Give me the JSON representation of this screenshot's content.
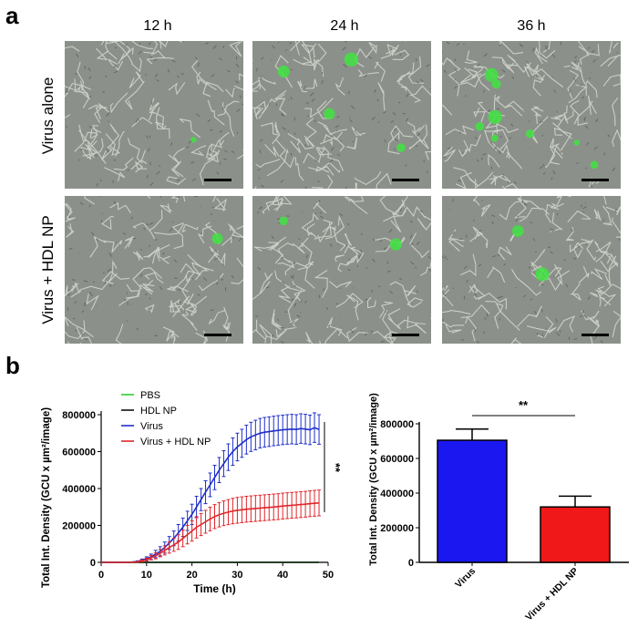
{
  "panel_a": {
    "label": "a",
    "columns": [
      "12 h",
      "24 h",
      "36 h"
    ],
    "rows": [
      "Virus alone",
      "Virus + HDL NP"
    ],
    "fluorescent_spots": [
      [
        0.5,
        2,
        4
      ],
      [
        0.5,
        1,
        1
      ]
    ]
  },
  "panel_b": {
    "label": "b"
  },
  "chart_data": [
    {
      "type": "line",
      "xlabel": "Time (h)",
      "ylabel": "Total Int. Density (GCU x µm²/image)",
      "xlim": [
        0,
        50
      ],
      "ylim": [
        0,
        800000
      ],
      "xticks": [
        "0",
        "10",
        "20",
        "30",
        "40",
        "50"
      ],
      "yticks": [
        "0",
        "200000",
        "400000",
        "600000",
        "800000"
      ],
      "legend": [
        "PBS",
        "HDL NP",
        "Virus",
        "Virus + HDL NP"
      ],
      "legend_colors": [
        "#2bd12b",
        "#111111",
        "#1f2fc9",
        "#e0262a"
      ],
      "significance": "**",
      "series": [
        {
          "name": "PBS",
          "color": "#2bd12b",
          "x": [
            0,
            2,
            4,
            6,
            8,
            10,
            12,
            14,
            16,
            18,
            20,
            22,
            24,
            26,
            28,
            30,
            32,
            34,
            36,
            38,
            40,
            42,
            44,
            46,
            48
          ],
          "y": [
            0,
            0,
            0,
            0,
            0,
            0,
            0,
            0,
            0,
            0,
            0,
            0,
            0,
            0,
            0,
            0,
            0,
            0,
            0,
            0,
            0,
            0,
            0,
            0,
            0
          ]
        },
        {
          "name": "HDL NP",
          "color": "#111111",
          "x": [
            0,
            2,
            4,
            6,
            8,
            10,
            12,
            14,
            16,
            18,
            20,
            22,
            24,
            26,
            28,
            30,
            32,
            34,
            36,
            38,
            40,
            42,
            44,
            46,
            48
          ],
          "y": [
            0,
            0,
            0,
            0,
            0,
            0,
            0,
            0,
            0,
            0,
            0,
            0,
            0,
            0,
            0,
            0,
            0,
            0,
            0,
            0,
            0,
            0,
            0,
            0,
            0
          ]
        },
        {
          "name": "Virus",
          "color": "#1f2fc9",
          "x": [
            0,
            2,
            4,
            6,
            8,
            9,
            10,
            11,
            12,
            13,
            14,
            15,
            16,
            17,
            18,
            19,
            20,
            21,
            22,
            23,
            24,
            25,
            26,
            27,
            28,
            29,
            30,
            31,
            32,
            33,
            34,
            35,
            36,
            37,
            38,
            39,
            40,
            41,
            42,
            43,
            44,
            45,
            46,
            47,
            48
          ],
          "y": [
            0,
            0,
            0,
            0,
            5000,
            12000,
            20000,
            30000,
            45000,
            60000,
            80000,
            105000,
            130000,
            160000,
            190000,
            225000,
            260000,
            300000,
            340000,
            380000,
            420000,
            460000,
            500000,
            535000,
            570000,
            600000,
            625000,
            645000,
            665000,
            680000,
            690000,
            700000,
            705000,
            708000,
            712000,
            715000,
            718000,
            720000,
            722000,
            720000,
            725000,
            722000,
            718000,
            730000,
            720000
          ],
          "err": [
            0,
            0,
            0,
            0,
            3000,
            6000,
            10000,
            15000,
            20000,
            25000,
            30000,
            35000,
            40000,
            45000,
            50000,
            52000,
            55000,
            58000,
            60000,
            62000,
            64000,
            66000,
            68000,
            70000,
            72000,
            74000,
            75000,
            76000,
            78000,
            79000,
            80000,
            80000,
            80000,
            80000,
            80000,
            80000,
            80000,
            80000,
            80000,
            80000,
            80000,
            80000,
            80000,
            80000,
            80000
          ]
        },
        {
          "name": "Virus + HDL NP",
          "color": "#e0262a",
          "x": [
            0,
            2,
            4,
            6,
            8,
            9,
            10,
            11,
            12,
            13,
            14,
            15,
            16,
            17,
            18,
            19,
            20,
            21,
            22,
            23,
            24,
            25,
            26,
            27,
            28,
            29,
            30,
            31,
            32,
            33,
            34,
            35,
            36,
            37,
            38,
            39,
            40,
            41,
            42,
            43,
            44,
            45,
            46,
            47,
            48
          ],
          "y": [
            0,
            0,
            0,
            0,
            3000,
            8000,
            15000,
            25000,
            35000,
            50000,
            65000,
            80000,
            95000,
            110000,
            130000,
            150000,
            170000,
            190000,
            205000,
            220000,
            235000,
            248000,
            258000,
            266000,
            272000,
            278000,
            282000,
            285000,
            288000,
            290000,
            292000,
            294000,
            296000,
            298000,
            300000,
            302000,
            305000,
            307000,
            309000,
            311000,
            313000,
            315000,
            318000,
            320000,
            322000
          ],
          "err": [
            0,
            0,
            0,
            0,
            2000,
            5000,
            8000,
            12000,
            16000,
            20000,
            25000,
            30000,
            35000,
            40000,
            45000,
            50000,
            55000,
            58000,
            60000,
            62000,
            64000,
            65000,
            66000,
            67000,
            68000,
            69000,
            70000,
            70000,
            70000,
            70000,
            70000,
            70000,
            70000,
            70000,
            70000,
            70000,
            70000,
            70000,
            70000,
            70000,
            70000,
            70000,
            70000,
            70000,
            70000
          ]
        }
      ]
    },
    {
      "type": "bar",
      "ylabel": "Total Int. Density (GCU x µm²/image)",
      "categories": [
        "Virus",
        "Virus + HDL NP"
      ],
      "values": [
        705000,
        320000
      ],
      "errors": [
        65000,
        62000
      ],
      "colors": [
        "#1a17f0",
        "#f01818"
      ],
      "ylim": [
        0,
        800000
      ],
      "yticks": [
        "0",
        "200000",
        "400000",
        "600000",
        "800000"
      ],
      "significance": "**"
    }
  ]
}
